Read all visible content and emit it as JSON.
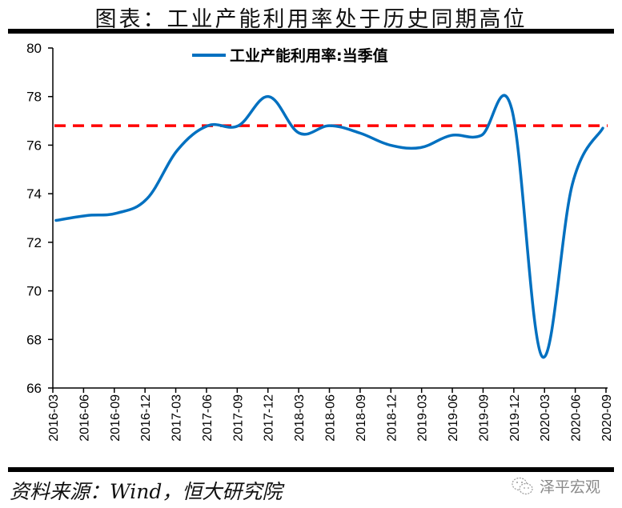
{
  "title": "图表：工业产能利用率处于历史同期高位",
  "source": "资料来源：Wind，恒大研究院",
  "watermark": {
    "icon": "wechat-icon",
    "text": "泽平宏观"
  },
  "colors": {
    "series": "#0070C0",
    "reference": "#FF0000",
    "axis": "#000000"
  },
  "chart_data": {
    "type": "line",
    "title": "图表：工业产能利用率处于历史同期高位",
    "xlabel": "",
    "ylabel": "",
    "ylim": [
      66,
      80
    ],
    "yticks": [
      66,
      68,
      70,
      72,
      74,
      76,
      78,
      80
    ],
    "grid": false,
    "legend_position": "top-center",
    "categories": [
      "2016-03",
      "2016-06",
      "2016-09",
      "2016-12",
      "2017-03",
      "2017-06",
      "2017-09",
      "2017-12",
      "2018-03",
      "2018-06",
      "2018-09",
      "2018-12",
      "2019-03",
      "2019-06",
      "2019-09",
      "2019-12",
      "2020-03",
      "2020-06",
      "2020-09"
    ],
    "series": [
      {
        "name": "工业产能利用率:当季值",
        "values": [
          72.9,
          73.1,
          73.2,
          73.8,
          75.8,
          76.8,
          76.8,
          78.0,
          76.5,
          76.8,
          76.5,
          76.0,
          75.9,
          76.4,
          76.4,
          77.5,
          67.3,
          74.4,
          76.7
        ]
      }
    ],
    "reference_line": {
      "value": 76.8,
      "style": "dashed",
      "color": "#FF0000"
    }
  }
}
